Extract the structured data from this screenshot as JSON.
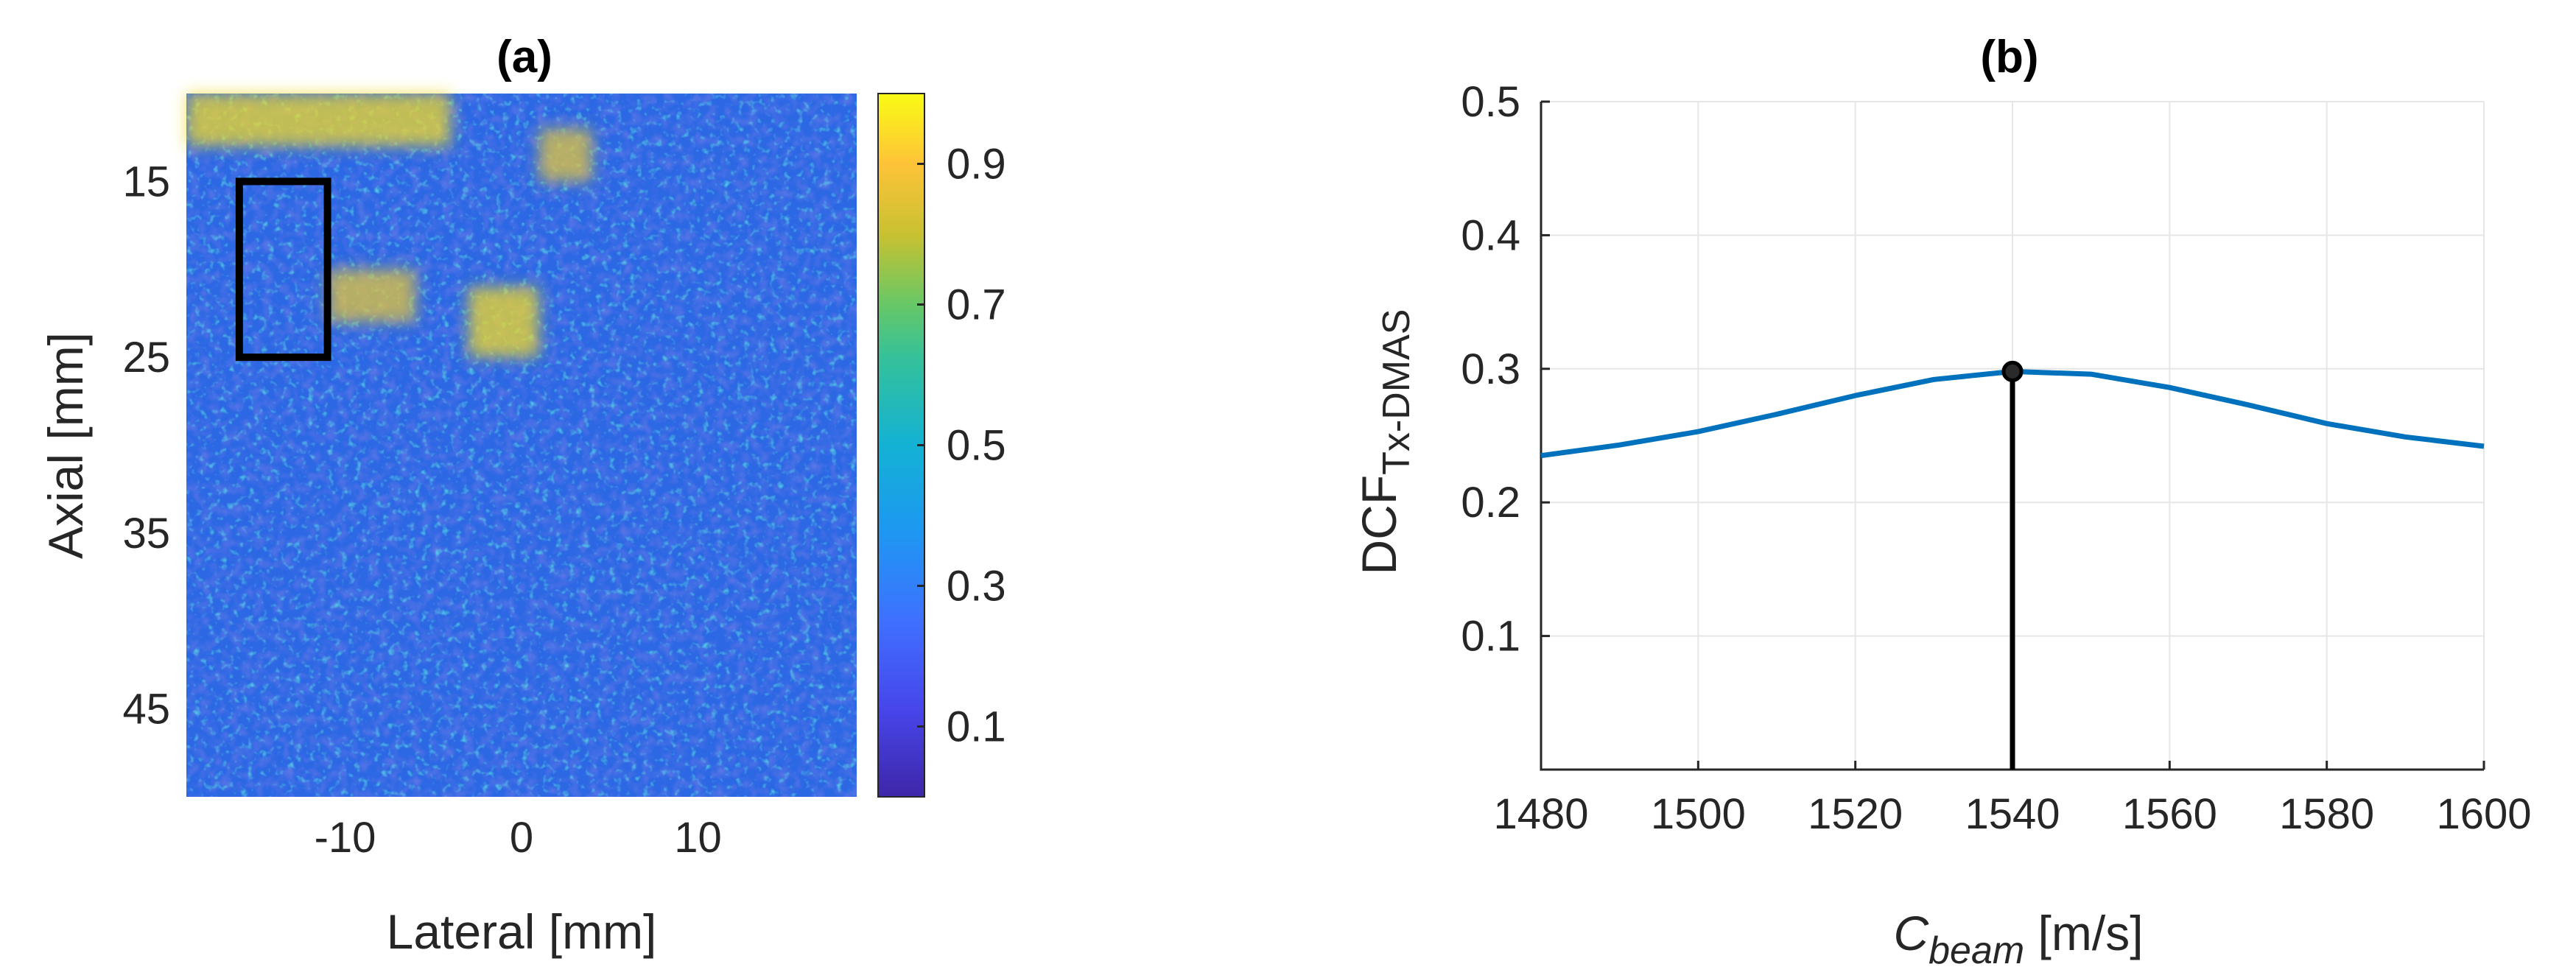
{
  "panels": {
    "a": {
      "title": "(a)",
      "xlabel": "Lateral [mm]",
      "ylabel": "Axial [mm]",
      "xticks": [
        "-10",
        "0",
        "10"
      ],
      "yticks": [
        "15",
        "25",
        "35",
        "45"
      ],
      "colorbar_ticks": [
        "0.9",
        "0.7",
        "0.5",
        "0.3",
        "0.1"
      ],
      "colormap": "parula"
    },
    "b": {
      "title": "(b)",
      "xlabel_main": "C",
      "xlabel_sub": "beam",
      "xlabel_unit": " [m/s]",
      "ylabel_main": "DCF",
      "ylabel_sub": "Tx-DMAS"
    }
  },
  "colors": {
    "line": "#0072BD",
    "marker": "#000000",
    "grid": "#e6e6e6",
    "rect": "#000000"
  },
  "chart_data": [
    {
      "type": "heatmap",
      "title": "(a)",
      "xlabel": "Lateral [mm]",
      "ylabel": "Axial [mm]",
      "xlim": [
        -19,
        19
      ],
      "ylim": [
        50,
        10
      ],
      "xticks": [
        -10,
        0,
        10
      ],
      "yticks": [
        15,
        25,
        35,
        45
      ],
      "clim": [
        0,
        1
      ],
      "colorbar_ticks": [
        0.1,
        0.3,
        0.5,
        0.7,
        0.9
      ],
      "annotation": {
        "shape": "rectangle",
        "x": [
          -16,
          -11
        ],
        "y": [
          15,
          25
        ]
      },
      "high_regions": [
        {
          "x": [
            -19,
            -4
          ],
          "y": [
            10,
            13
          ]
        },
        {
          "x": [
            1,
            4
          ],
          "y": [
            12,
            15
          ]
        },
        {
          "x": [
            -3,
            1
          ],
          "y": [
            21,
            25
          ]
        },
        {
          "x": [
            -11,
            -6
          ],
          "y": [
            20,
            23
          ]
        }
      ]
    },
    {
      "type": "line",
      "title": "(b)",
      "xlabel": "C_beam [m/s]",
      "ylabel": "DCF_Tx-DMAS",
      "xlim": [
        1480,
        1600
      ],
      "ylim": [
        0,
        0.5
      ],
      "grid": true,
      "xticks": [
        1480,
        1500,
        1520,
        1540,
        1560,
        1580,
        1600
      ],
      "yticks": [
        0.1,
        0.2,
        0.3,
        0.4,
        0.5
      ],
      "x": [
        1480,
        1490,
        1500,
        1510,
        1520,
        1530,
        1540,
        1550,
        1560,
        1570,
        1580,
        1590,
        1600
      ],
      "y": [
        0.235,
        0.243,
        0.253,
        0.266,
        0.28,
        0.292,
        0.298,
        0.296,
        0.286,
        0.273,
        0.259,
        0.249,
        0.242
      ],
      "stem": {
        "x": 1540,
        "y": 0.298
      }
    }
  ]
}
